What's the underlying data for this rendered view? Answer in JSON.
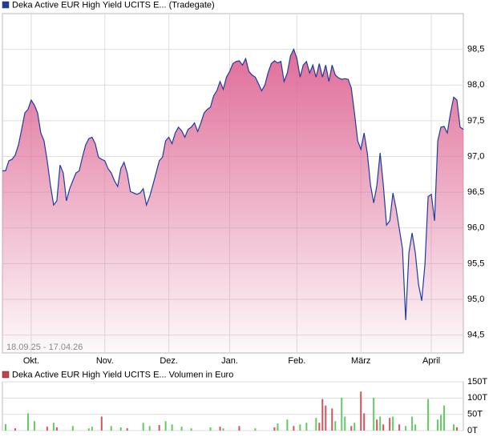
{
  "chart_data": [
    {
      "type": "area",
      "title": "Deka Active EUR High Yield UCITS E... (Tradegate)",
      "date_range": "18.09.25 - 17.04.26",
      "color": "#1f3c9e",
      "area_color": "#e06d98",
      "grid": true,
      "categories": [
        null,
        null,
        null,
        null,
        null,
        null,
        null,
        null,
        null,
        "Okt.",
        null,
        null,
        null,
        null,
        null,
        null,
        null,
        null,
        null,
        null,
        null,
        null,
        null,
        null,
        null,
        null,
        null,
        null,
        null,
        null,
        null,
        null,
        "Nov.",
        null,
        null,
        null,
        null,
        null,
        null,
        null,
        null,
        null,
        null,
        null,
        null,
        null,
        null,
        null,
        null,
        null,
        null,
        null,
        "Dez.",
        null,
        null,
        null,
        null,
        null,
        null,
        null,
        null,
        null,
        null,
        null,
        null,
        null,
        null,
        null,
        null,
        null,
        null,
        "Jan.",
        null,
        null,
        null,
        null,
        null,
        null,
        null,
        null,
        null,
        null,
        null,
        null,
        null,
        null,
        null,
        null,
        null,
        null,
        null,
        null,
        "Feb.",
        null,
        null,
        null,
        null,
        null,
        null,
        null,
        null,
        null,
        null,
        null,
        null,
        null,
        null,
        null,
        null,
        null,
        null,
        null,
        "März",
        null,
        null,
        null,
        null,
        null,
        null,
        null,
        null,
        null,
        null,
        null,
        null,
        null,
        null,
        null,
        null,
        null,
        null,
        null,
        null,
        null,
        "April",
        null,
        null,
        null,
        null,
        null,
        null,
        null,
        null,
        null,
        null
      ],
      "values": [
        96.8,
        96.8,
        96.94,
        96.96,
        97.02,
        97.16,
        97.38,
        97.61,
        97.66,
        97.79,
        97.72,
        97.61,
        97.33,
        97.22,
        96.94,
        96.6,
        96.32,
        96.38,
        96.88,
        96.77,
        96.38,
        96.55,
        96.66,
        96.77,
        96.8,
        96.99,
        97.16,
        97.25,
        97.27,
        97.18,
        96.99,
        96.96,
        96.94,
        96.83,
        96.77,
        96.66,
        96.58,
        96.83,
        96.92,
        96.77,
        96.51,
        96.49,
        96.47,
        96.49,
        96.55,
        96.32,
        96.44,
        96.6,
        96.77,
        96.94,
        96.99,
        97.22,
        97.27,
        97.18,
        97.33,
        97.41,
        97.36,
        97.27,
        97.38,
        97.41,
        97.47,
        97.35,
        97.47,
        97.61,
        97.66,
        97.69,
        97.85,
        97.92,
        98.05,
        97.94,
        98.11,
        98.19,
        98.3,
        98.33,
        98.34,
        98.28,
        98.37,
        98.19,
        98.14,
        98.11,
        98.02,
        97.92,
        98.0,
        98.17,
        98.3,
        98.34,
        98.31,
        98.33,
        98.05,
        98.17,
        98.41,
        98.5,
        98.37,
        98.11,
        98.28,
        98.33,
        98.17,
        98.28,
        98.11,
        98.3,
        98.11,
        98.28,
        98.05,
        98.28,
        98.14,
        98.1,
        98.08,
        98.09,
        98.08,
        97.96,
        97.61,
        97.22,
        97.1,
        97.33,
        97.05,
        96.6,
        96.35,
        96.6,
        97.05,
        96.6,
        96.04,
        96.1,
        96.49,
        96.27,
        95.99,
        95.71,
        94.71,
        95.65,
        95.93,
        95.65,
        95.21,
        94.98,
        95.49,
        96.44,
        96.47,
        96.1,
        97.22,
        97.41,
        97.42,
        97.33,
        97.61,
        97.83,
        97.79,
        97.41,
        97.38
      ],
      "ylim": [
        94.25,
        99.0
      ],
      "yticks": [
        {
          "value": 94.5,
          "label": "94,5"
        },
        {
          "value": 95.0,
          "label": "95,0"
        },
        {
          "value": 95.5,
          "label": "95,5"
        },
        {
          "value": 96.0,
          "label": "96,0"
        },
        {
          "value": 96.5,
          "label": "96,5"
        },
        {
          "value": 97.0,
          "label": "97,0"
        },
        {
          "value": 97.5,
          "label": "97,5"
        },
        {
          "value": 98.0,
          "label": "98,0"
        },
        {
          "value": 98.5,
          "label": "98,5"
        }
      ]
    },
    {
      "type": "bar",
      "title": "Deka Active EUR High Yield UCITS E... Volumen in Euro",
      "color": "#c8424a",
      "grid": true,
      "series": [
        {
          "color": "#5ecf5e",
          "values": [
            null,
            20000,
            null,
            null,
            null,
            null,
            null,
            null,
            53000,
            null,
            29000,
            null,
            null,
            null,
            null,
            null,
            24000,
            null,
            null,
            null,
            null,
            null,
            14000,
            null,
            null,
            null,
            null,
            7000,
            12000,
            null,
            null,
            null,
            null,
            null,
            14000,
            null,
            null,
            10000,
            null,
            null,
            null,
            null,
            null,
            null,
            24000,
            null,
            14000,
            null,
            null,
            null,
            null,
            29000,
            null,
            19000,
            null,
            null,
            12000,
            null,
            null,
            7000,
            null,
            null,
            null,
            null,
            null,
            10000,
            null,
            null,
            null,
            7000,
            null,
            null,
            null,
            null,
            null,
            null,
            null,
            null,
            null,
            7000,
            null,
            null,
            null,
            null,
            null,
            null,
            22000,
            null,
            null,
            34000,
            null,
            null,
            null,
            19000,
            null,
            24000,
            null,
            null,
            39000,
            null,
            null,
            null,
            null,
            null,
            29000,
            null,
            101000,
            43000,
            null,
            null,
            24000,
            null,
            null,
            null,
            null,
            null,
            101000,
            null,
            43000,
            null,
            null,
            null,
            43000,
            null,
            null,
            null,
            14000,
            null,
            43000,
            19000,
            null,
            null,
            null,
            97000,
            null,
            null,
            34000,
            48000,
            77000,
            null,
            null,
            19000,
            null,
            null,
            null
          ]
        },
        {
          "color": "#d9505a",
          "values": [
            null,
            null,
            null,
            null,
            7000,
            null,
            null,
            null,
            null,
            null,
            null,
            null,
            null,
            null,
            12000,
            null,
            null,
            10000,
            null,
            null,
            null,
            null,
            null,
            null,
            null,
            null,
            null,
            null,
            null,
            null,
            null,
            43000,
            null,
            null,
            null,
            null,
            null,
            null,
            null,
            7000,
            null,
            null,
            null,
            null,
            null,
            null,
            null,
            null,
            null,
            17000,
            null,
            null,
            null,
            null,
            null,
            null,
            null,
            null,
            null,
            null,
            null,
            null,
            null,
            null,
            null,
            null,
            null,
            null,
            12000,
            null,
            null,
            null,
            null,
            null,
            14000,
            null,
            null,
            null,
            null,
            null,
            null,
            null,
            null,
            null,
            null,
            10000,
            null,
            null,
            null,
            null,
            null,
            14000,
            null,
            null,
            null,
            null,
            null,
            null,
            null,
            24000,
            97000,
            77000,
            null,
            68000,
            null,
            null,
            null,
            null,
            null,
            14000,
            null,
            null,
            120000,
            53000,
            null,
            null,
            null,
            34000,
            null,
            19000,
            null,
            39000,
            null,
            null,
            19000,
            null,
            null,
            null,
            null,
            null,
            null,
            null,
            null,
            null,
            null,
            null,
            null,
            null,
            null,
            null,
            null,
            null,
            10000,
            null,
            null
          ]
        }
      ],
      "ylim": [
        0,
        150000
      ],
      "yticks": [
        {
          "value": 0,
          "label": "0T"
        },
        {
          "value": 50000,
          "label": "50T"
        },
        {
          "value": 100000,
          "label": "100T"
        },
        {
          "value": 150000,
          "label": "150T"
        }
      ]
    }
  ]
}
